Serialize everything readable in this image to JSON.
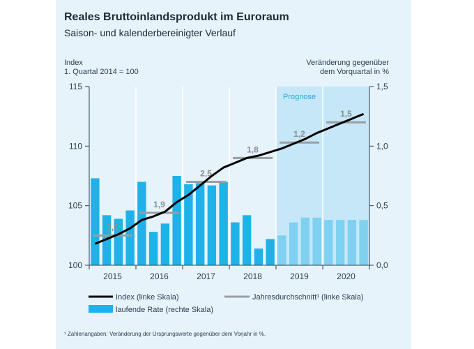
{
  "title": "Reales Bruttoinlandsprodukt im Euroraum",
  "subtitle": "Saison- und kalenderbereinigter Verlauf",
  "left_axis": {
    "line1": "Index",
    "line2": "1. Quartal 2014 = 100"
  },
  "right_axis": {
    "line1": "Veränderung gegenüber",
    "line2": "dem Vorquartal in %"
  },
  "footnote": "¹ Zahlenangaben: Veränderung der Ursprungswerte gegenüber dem Vorjahr in %.",
  "colors": {
    "bar": "#1fb2e8",
    "bar_forecast": "#7fd0f1",
    "forecast_band": "#c6e7f8",
    "index_line": "#000000",
    "avg_line": "#9a9ea3",
    "background": "#e6f3fb"
  },
  "chart_data": {
    "type": "bar+line",
    "title": "Reales Bruttoinlandsprodukt im Euroraum",
    "subtitle": "Saison- und kalenderbereinigter Verlauf",
    "forecast_label": "Prognose",
    "forecast_start_index": 16,
    "left_axis": {
      "ylim": [
        100,
        115
      ],
      "ticks": [
        100,
        105,
        110,
        115
      ],
      "tick_labels": [
        "100",
        "105",
        "110",
        "115"
      ]
    },
    "right_axis": {
      "ylim": [
        0,
        1.5
      ],
      "ticks": [
        0,
        0.5,
        1.0,
        1.5
      ],
      "tick_labels": [
        "0,0",
        "0,5",
        "1,0",
        "1,5"
      ]
    },
    "years": [
      "2015",
      "2016",
      "2017",
      "2018",
      "2019",
      "2020"
    ],
    "quarters": [
      "2015Q1",
      "2015Q2",
      "2015Q3",
      "2015Q4",
      "2016Q1",
      "2016Q2",
      "2016Q3",
      "2016Q4",
      "2017Q1",
      "2017Q2",
      "2017Q3",
      "2017Q4",
      "2018Q1",
      "2018Q2",
      "2018Q3",
      "2018Q4",
      "2019Q1",
      "2019Q2",
      "2019Q3",
      "2019Q4",
      "2020Q1",
      "2020Q2",
      "2020Q3",
      "2020Q4"
    ],
    "series": [
      {
        "name": "laufende Rate (rechte Skala)",
        "type": "bar",
        "axis": "right",
        "values": [
          0.73,
          0.42,
          0.39,
          0.46,
          0.7,
          0.28,
          0.35,
          0.75,
          0.68,
          0.69,
          0.67,
          0.7,
          0.36,
          0.42,
          0.14,
          0.22,
          0.25,
          0.36,
          0.4,
          0.4,
          0.38,
          0.38,
          0.38,
          0.38
        ]
      },
      {
        "name": "Index (linke Skala)",
        "type": "line",
        "axis": "left",
        "values": [
          101.8,
          102.2,
          102.6,
          103.1,
          103.8,
          104.1,
          104.5,
          105.3,
          105.9,
          106.7,
          107.5,
          108.2,
          108.6,
          109.0,
          109.2,
          109.5,
          109.8,
          110.2,
          110.6,
          111.1,
          111.5,
          111.9,
          112.3,
          112.7
        ]
      },
      {
        "name": "Jahresdurchschnitt¹ (linke Skala)",
        "type": "step",
        "axis": "left",
        "years": [
          "2015",
          "2016",
          "2017",
          "2018",
          "2019",
          "2020"
        ],
        "values": [
          102.5,
          104.4,
          107.0,
          109.0,
          110.3,
          112.0
        ],
        "labels": [
          "2,0",
          "1,9",
          "2,5",
          "1,8",
          "1,2",
          "1,5"
        ]
      }
    ],
    "legend": {
      "position": "bottom",
      "entries": [
        "Index (linke Skala)",
        "Jahresdurchschnitt¹ (linke Skala)",
        "laufende Rate (rechte Skala)"
      ]
    }
  }
}
